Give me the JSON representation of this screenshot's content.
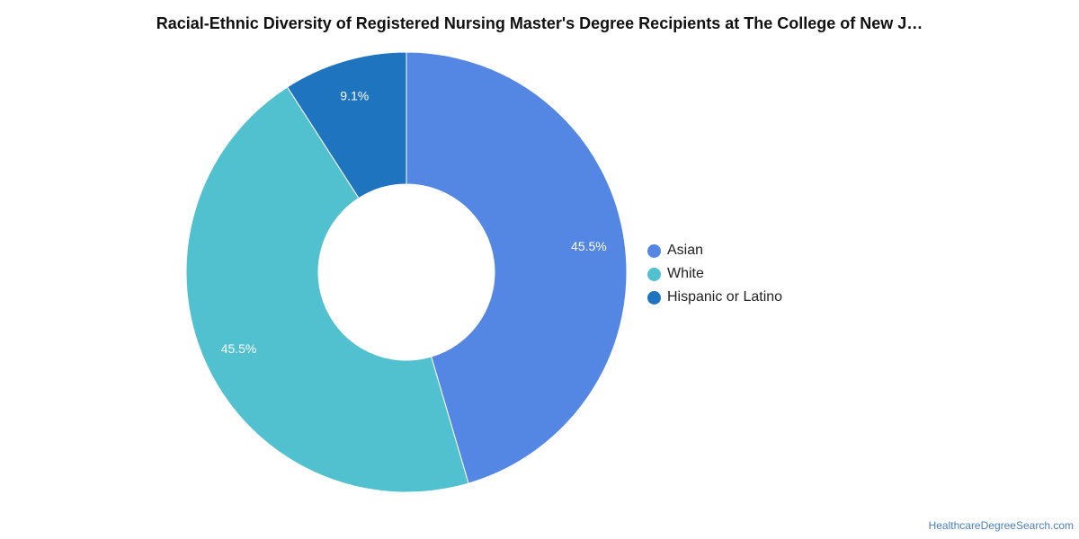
{
  "chart_data": {
    "type": "pie",
    "title": "Racial-Ethnic Diversity of Registered Nursing Master's Degree Recipients at The College of New J…",
    "categories": [
      "Asian",
      "White",
      "Hispanic or Latino"
    ],
    "values": [
      45.5,
      45.5,
      9.1
    ],
    "labels": [
      "45.5%",
      "45.5%",
      "9.1%"
    ],
    "colors": [
      "#5486e3",
      "#52c1cf",
      "#1f74bf"
    ],
    "donut": true,
    "legend_position": "right"
  },
  "footer": {
    "source": "HealthcareDegreeSearch.com"
  }
}
